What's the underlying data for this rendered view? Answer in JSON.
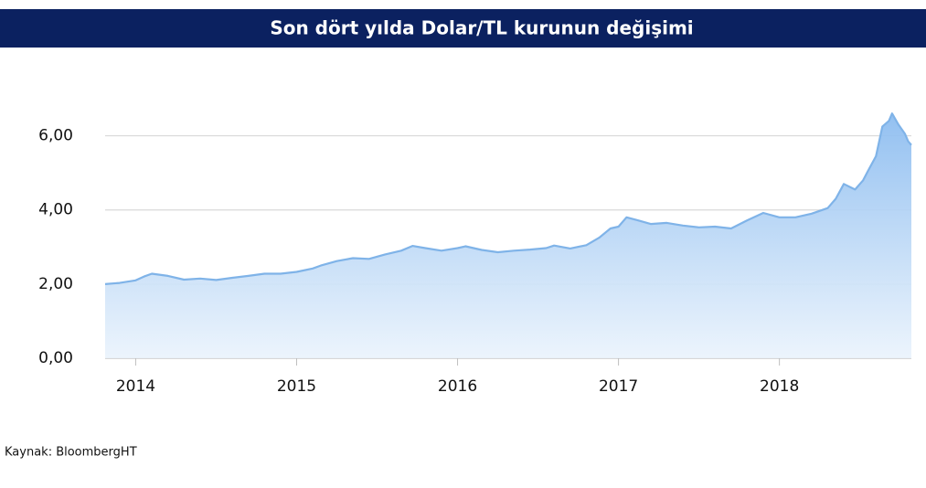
{
  "chart_data": {
    "type": "area",
    "title": "Son dört yılda Dolar/TL kurunun değişimi",
    "source": "Kaynak: BloombergHT",
    "color": "#7fb3e8",
    "grid": true,
    "x": [
      2013.81,
      2013.9,
      2014.0,
      2014.05,
      2014.1,
      2014.2,
      2014.3,
      2014.4,
      2014.5,
      2014.6,
      2014.7,
      2014.8,
      2014.9,
      2015.0,
      2015.1,
      2015.15,
      2015.25,
      2015.35,
      2015.45,
      2015.55,
      2015.65,
      2015.72,
      2015.8,
      2015.9,
      2016.0,
      2016.05,
      2016.15,
      2016.25,
      2016.35,
      2016.45,
      2016.55,
      2016.6,
      2016.7,
      2016.8,
      2016.88,
      2016.95,
      2017.0,
      2017.05,
      2017.12,
      2017.2,
      2017.3,
      2017.4,
      2017.5,
      2017.6,
      2017.7,
      2017.8,
      2017.9,
      2018.0,
      2018.1,
      2018.2,
      2018.3,
      2018.35,
      2018.4,
      2018.47,
      2018.52,
      2018.55,
      2018.6,
      2018.64,
      2018.68,
      2018.7,
      2018.74,
      2018.78,
      2018.8,
      2018.82
    ],
    "values": [
      2.0,
      2.03,
      2.1,
      2.2,
      2.28,
      2.22,
      2.12,
      2.15,
      2.11,
      2.17,
      2.22,
      2.28,
      2.28,
      2.33,
      2.42,
      2.5,
      2.62,
      2.7,
      2.68,
      2.8,
      2.9,
      3.03,
      2.97,
      2.9,
      2.97,
      3.02,
      2.92,
      2.86,
      2.9,
      2.93,
      2.97,
      3.04,
      2.96,
      3.05,
      3.25,
      3.5,
      3.55,
      3.8,
      3.72,
      3.62,
      3.65,
      3.58,
      3.53,
      3.55,
      3.5,
      3.72,
      3.92,
      3.8,
      3.8,
      3.9,
      4.05,
      4.3,
      4.7,
      4.55,
      4.8,
      5.05,
      5.45,
      6.25,
      6.4,
      6.6,
      6.3,
      6.05,
      5.85,
      5.75
    ],
    "xlim": [
      2013.81,
      2018.82
    ],
    "xticks": [
      2014,
      2015,
      2016,
      2017,
      2018
    ],
    "ylim": [
      0,
      7
    ],
    "yticks": [
      {
        "value": 0,
        "label": "0,00"
      },
      {
        "value": 2,
        "label": "2,00"
      },
      {
        "value": 4,
        "label": "4,00"
      },
      {
        "value": 6,
        "label": "6,00"
      }
    ]
  }
}
